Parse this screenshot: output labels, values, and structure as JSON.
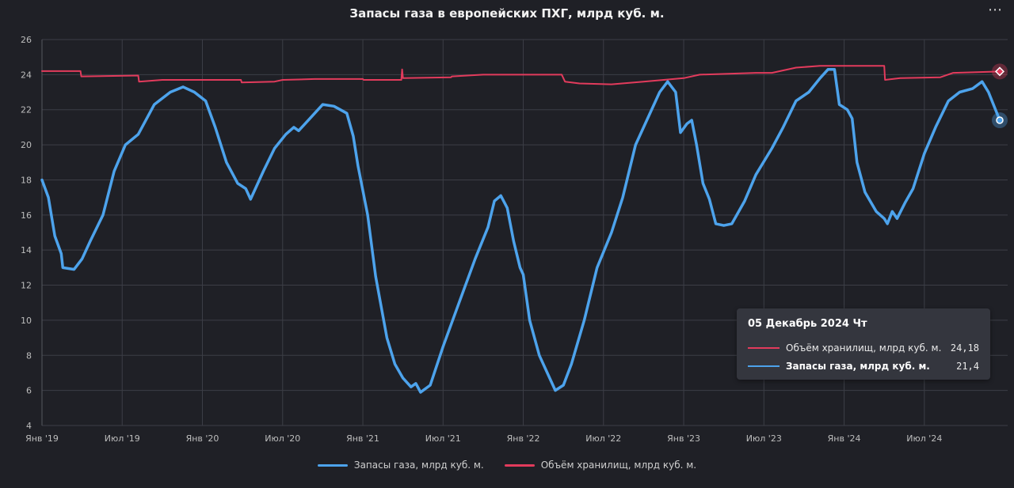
{
  "menu_icon": "ellipsis-icon",
  "colors": {
    "storage": "#4da3ec",
    "capacity": "#e23b5c",
    "grid": "#3c3e46",
    "background": "#1f2026"
  },
  "tooltip": {
    "date": "05 Декабрь 2024 Чт",
    "rows": [
      {
        "name": "Объём хранилищ, млрд куб. м.",
        "value": "24,18"
      },
      {
        "name": "Запасы газа, млрд куб. м.",
        "value": "21,4"
      }
    ]
  },
  "legend": [
    {
      "name": "Запасы газа, млрд куб. м."
    },
    {
      "name": "Объём хранилищ, млрд куб. м."
    }
  ],
  "chart_data": {
    "type": "line",
    "title": "Запасы газа в европейских ПХГ, млрд куб. м.",
    "ylim": [
      4,
      26
    ],
    "yticks": [
      4,
      6,
      8,
      10,
      12,
      14,
      16,
      18,
      20,
      22,
      24,
      26
    ],
    "xlim": [
      2019.0,
      2024.97
    ],
    "xticks": [
      {
        "x": 2019.0,
        "label": "Янв '19"
      },
      {
        "x": 2019.5,
        "label": "Июл '19"
      },
      {
        "x": 2020.0,
        "label": "Янв '20"
      },
      {
        "x": 2020.5,
        "label": "Июл '20"
      },
      {
        "x": 2021.0,
        "label": "Янв '21"
      },
      {
        "x": 2021.5,
        "label": "Июл '21"
      },
      {
        "x": 2022.0,
        "label": "Янв '22"
      },
      {
        "x": 2022.5,
        "label": "Июл '22"
      },
      {
        "x": 2023.0,
        "label": "Янв '23"
      },
      {
        "x": 2023.5,
        "label": "Июл '23"
      },
      {
        "x": 2024.0,
        "label": "Янв '24"
      },
      {
        "x": 2024.5,
        "label": "Июл '24"
      }
    ],
    "grid": true,
    "legend_position": "bottom",
    "series": [
      {
        "name": "Объём хранилищ, млрд куб. м.",
        "points": [
          [
            2019.0,
            24.2
          ],
          [
            2019.24,
            24.2
          ],
          [
            2019.245,
            23.9
          ],
          [
            2019.6,
            23.95
          ],
          [
            2019.605,
            23.6
          ],
          [
            2019.75,
            23.7
          ],
          [
            2020.24,
            23.7
          ],
          [
            2020.245,
            23.55
          ],
          [
            2020.45,
            23.6
          ],
          [
            2020.5,
            23.7
          ],
          [
            2020.7,
            23.75
          ],
          [
            2021.0,
            23.75
          ],
          [
            2021.005,
            23.7
          ],
          [
            2021.24,
            23.7
          ],
          [
            2021.245,
            24.3
          ],
          [
            2021.25,
            23.8
          ],
          [
            2021.55,
            23.85
          ],
          [
            2021.555,
            23.9
          ],
          [
            2021.75,
            24.0
          ],
          [
            2022.24,
            24.0
          ],
          [
            2022.26,
            23.6
          ],
          [
            2022.35,
            23.5
          ],
          [
            2022.55,
            23.45
          ],
          [
            2022.75,
            23.6
          ],
          [
            2023.0,
            23.8
          ],
          [
            2023.1,
            24.0
          ],
          [
            2023.45,
            24.1
          ],
          [
            2023.55,
            24.1
          ],
          [
            2023.7,
            24.4
          ],
          [
            2023.85,
            24.5
          ],
          [
            2024.25,
            24.5
          ],
          [
            2024.255,
            23.7
          ],
          [
            2024.35,
            23.8
          ],
          [
            2024.6,
            23.85
          ],
          [
            2024.68,
            24.1
          ],
          [
            2024.97,
            24.18
          ]
        ]
      },
      {
        "name": "Запасы газа, млрд куб. м.",
        "points": [
          [
            2019.0,
            18.0
          ],
          [
            2019.04,
            17.0
          ],
          [
            2019.08,
            14.8
          ],
          [
            2019.12,
            13.8
          ],
          [
            2019.13,
            13.0
          ],
          [
            2019.2,
            12.9
          ],
          [
            2019.25,
            13.5
          ],
          [
            2019.3,
            14.5
          ],
          [
            2019.38,
            16.0
          ],
          [
            2019.45,
            18.5
          ],
          [
            2019.52,
            20.0
          ],
          [
            2019.6,
            20.6
          ],
          [
            2019.7,
            22.3
          ],
          [
            2019.8,
            23.0
          ],
          [
            2019.88,
            23.3
          ],
          [
            2019.95,
            23.0
          ],
          [
            2020.02,
            22.5
          ],
          [
            2020.08,
            21.0
          ],
          [
            2020.15,
            19.0
          ],
          [
            2020.22,
            17.8
          ],
          [
            2020.27,
            17.5
          ],
          [
            2020.3,
            16.9
          ],
          [
            2020.38,
            18.5
          ],
          [
            2020.45,
            19.8
          ],
          [
            2020.52,
            20.6
          ],
          [
            2020.57,
            21.0
          ],
          [
            2020.6,
            20.8
          ],
          [
            2020.67,
            21.5
          ],
          [
            2020.75,
            22.3
          ],
          [
            2020.82,
            22.2
          ],
          [
            2020.9,
            21.8
          ],
          [
            2020.94,
            20.5
          ],
          [
            2020.97,
            18.8
          ],
          [
            2021.03,
            16.0
          ],
          [
            2021.08,
            12.5
          ],
          [
            2021.15,
            9.0
          ],
          [
            2021.2,
            7.5
          ],
          [
            2021.25,
            6.7
          ],
          [
            2021.3,
            6.2
          ],
          [
            2021.33,
            6.4
          ],
          [
            2021.36,
            5.9
          ],
          [
            2021.42,
            6.3
          ],
          [
            2021.5,
            8.5
          ],
          [
            2021.6,
            11.0
          ],
          [
            2021.7,
            13.5
          ],
          [
            2021.78,
            15.3
          ],
          [
            2021.82,
            16.8
          ],
          [
            2021.86,
            17.1
          ],
          [
            2021.9,
            16.4
          ],
          [
            2021.94,
            14.5
          ],
          [
            2021.98,
            13.0
          ],
          [
            2022.0,
            12.6
          ],
          [
            2022.04,
            10.0
          ],
          [
            2022.1,
            8.0
          ],
          [
            2022.15,
            7.0
          ],
          [
            2022.2,
            6.0
          ],
          [
            2022.25,
            6.3
          ],
          [
            2022.3,
            7.5
          ],
          [
            2022.38,
            10.0
          ],
          [
            2022.46,
            13.0
          ],
          [
            2022.55,
            15.0
          ],
          [
            2022.62,
            17.0
          ],
          [
            2022.7,
            20.0
          ],
          [
            2022.78,
            21.6
          ],
          [
            2022.85,
            23.0
          ],
          [
            2022.9,
            23.6
          ],
          [
            2022.95,
            23.0
          ],
          [
            2022.98,
            20.7
          ],
          [
            2023.02,
            21.2
          ],
          [
            2023.05,
            21.4
          ],
          [
            2023.08,
            20.0
          ],
          [
            2023.12,
            17.8
          ],
          [
            2023.16,
            16.9
          ],
          [
            2023.2,
            15.5
          ],
          [
            2023.25,
            15.4
          ],
          [
            2023.3,
            15.5
          ],
          [
            2023.38,
            16.8
          ],
          [
            2023.45,
            18.3
          ],
          [
            2023.55,
            19.8
          ],
          [
            2023.62,
            21.0
          ],
          [
            2023.7,
            22.5
          ],
          [
            2023.78,
            23.0
          ],
          [
            2023.85,
            23.8
          ],
          [
            2023.9,
            24.3
          ],
          [
            2023.94,
            24.3
          ],
          [
            2023.97,
            22.3
          ],
          [
            2024.02,
            22.0
          ],
          [
            2024.05,
            21.5
          ],
          [
            2024.08,
            19.0
          ],
          [
            2024.13,
            17.3
          ],
          [
            2024.2,
            16.2
          ],
          [
            2024.25,
            15.8
          ],
          [
            2024.27,
            15.5
          ],
          [
            2024.3,
            16.2
          ],
          [
            2024.33,
            15.8
          ],
          [
            2024.38,
            16.7
          ],
          [
            2024.43,
            17.5
          ],
          [
            2024.5,
            19.5
          ],
          [
            2024.57,
            21.0
          ],
          [
            2024.65,
            22.5
          ],
          [
            2024.72,
            23.0
          ],
          [
            2024.8,
            23.2
          ],
          [
            2024.86,
            23.6
          ],
          [
            2024.9,
            23.0
          ],
          [
            2024.97,
            21.4
          ]
        ]
      }
    ]
  }
}
